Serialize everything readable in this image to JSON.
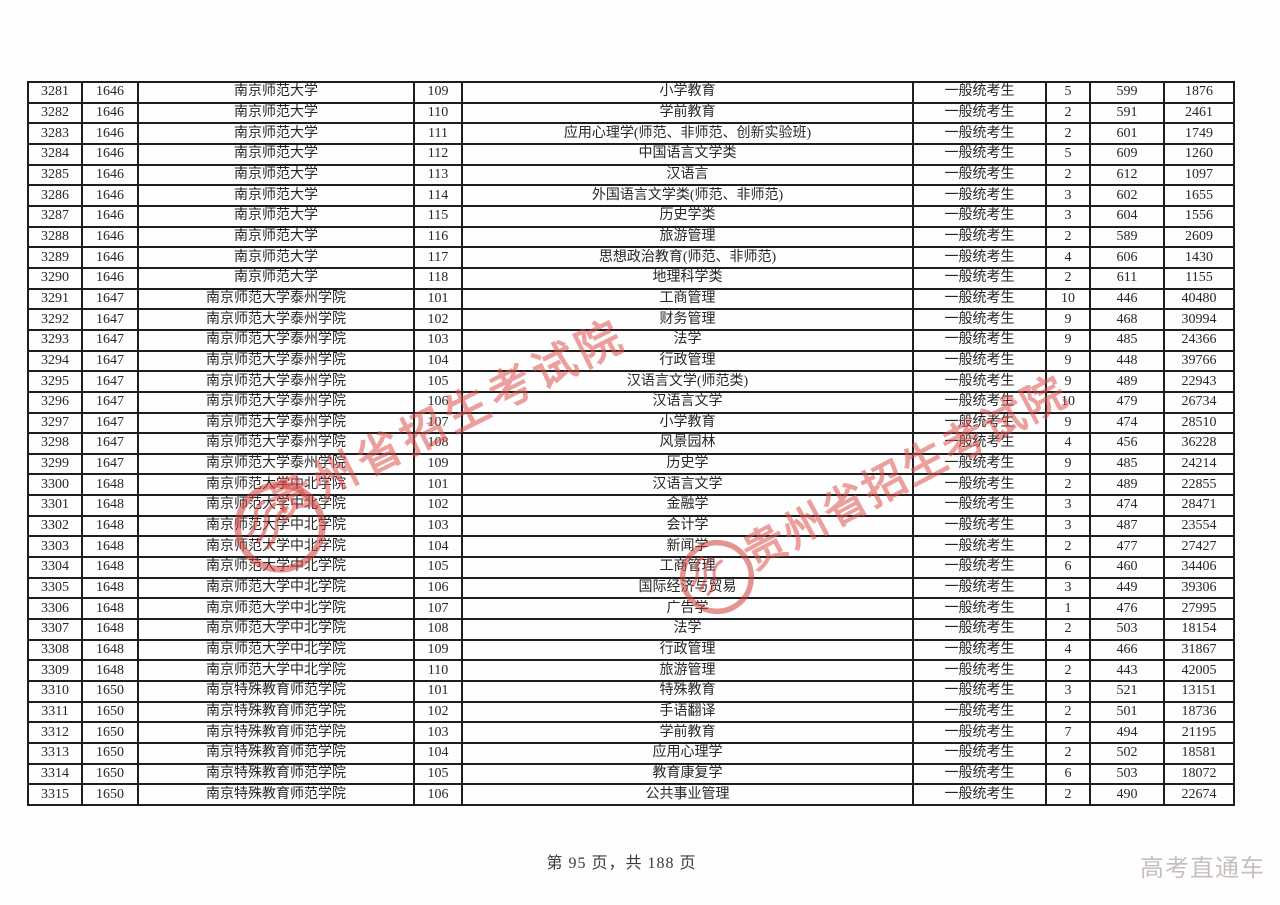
{
  "document": {
    "watermark": {
      "text": "贵州省招生考试院",
      "color": "#dd504a",
      "seal_icon": "official-seal"
    },
    "footer": {
      "page_info": "第 95 页，共 188 页",
      "brand": "高考直通车"
    }
  },
  "table": {
    "fields": [
      "seq",
      "code",
      "university",
      "major_code",
      "major",
      "type",
      "count",
      "score",
      "rank"
    ],
    "rows": [
      {
        "seq": "3281",
        "code": "1646",
        "university": "南京师范大学",
        "major_code": "109",
        "major": "小学教育",
        "type": "一般统考生",
        "count": "5",
        "score": "599",
        "rank": "1876"
      },
      {
        "seq": "3282",
        "code": "1646",
        "university": "南京师范大学",
        "major_code": "110",
        "major": "学前教育",
        "type": "一般统考生",
        "count": "2",
        "score": "591",
        "rank": "2461"
      },
      {
        "seq": "3283",
        "code": "1646",
        "university": "南京师范大学",
        "major_code": "111",
        "major": "应用心理学(师范、非师范、创新实验班)",
        "type": "一般统考生",
        "count": "2",
        "score": "601",
        "rank": "1749"
      },
      {
        "seq": "3284",
        "code": "1646",
        "university": "南京师范大学",
        "major_code": "112",
        "major": "中国语言文学类",
        "type": "一般统考生",
        "count": "5",
        "score": "609",
        "rank": "1260"
      },
      {
        "seq": "3285",
        "code": "1646",
        "university": "南京师范大学",
        "major_code": "113",
        "major": "汉语言",
        "type": "一般统考生",
        "count": "2",
        "score": "612",
        "rank": "1097"
      },
      {
        "seq": "3286",
        "code": "1646",
        "university": "南京师范大学",
        "major_code": "114",
        "major": "外国语言文学类(师范、非师范)",
        "type": "一般统考生",
        "count": "3",
        "score": "602",
        "rank": "1655"
      },
      {
        "seq": "3287",
        "code": "1646",
        "university": "南京师范大学",
        "major_code": "115",
        "major": "历史学类",
        "type": "一般统考生",
        "count": "3",
        "score": "604",
        "rank": "1556"
      },
      {
        "seq": "3288",
        "code": "1646",
        "university": "南京师范大学",
        "major_code": "116",
        "major": "旅游管理",
        "type": "一般统考生",
        "count": "2",
        "score": "589",
        "rank": "2609"
      },
      {
        "seq": "3289",
        "code": "1646",
        "university": "南京师范大学",
        "major_code": "117",
        "major": "思想政治教育(师范、非师范)",
        "type": "一般统考生",
        "count": "4",
        "score": "606",
        "rank": "1430"
      },
      {
        "seq": "3290",
        "code": "1646",
        "university": "南京师范大学",
        "major_code": "118",
        "major": "地理科学类",
        "type": "一般统考生",
        "count": "2",
        "score": "611",
        "rank": "1155"
      },
      {
        "seq": "3291",
        "code": "1647",
        "university": "南京师范大学泰州学院",
        "major_code": "101",
        "major": "工商管理",
        "type": "一般统考生",
        "count": "10",
        "score": "446",
        "rank": "40480"
      },
      {
        "seq": "3292",
        "code": "1647",
        "university": "南京师范大学泰州学院",
        "major_code": "102",
        "major": "财务管理",
        "type": "一般统考生",
        "count": "9",
        "score": "468",
        "rank": "30994"
      },
      {
        "seq": "3293",
        "code": "1647",
        "university": "南京师范大学泰州学院",
        "major_code": "103",
        "major": "法学",
        "type": "一般统考生",
        "count": "9",
        "score": "485",
        "rank": "24366"
      },
      {
        "seq": "3294",
        "code": "1647",
        "university": "南京师范大学泰州学院",
        "major_code": "104",
        "major": "行政管理",
        "type": "一般统考生",
        "count": "9",
        "score": "448",
        "rank": "39766"
      },
      {
        "seq": "3295",
        "code": "1647",
        "university": "南京师范大学泰州学院",
        "major_code": "105",
        "major": "汉语言文学(师范类)",
        "type": "一般统考生",
        "count": "9",
        "score": "489",
        "rank": "22943"
      },
      {
        "seq": "3296",
        "code": "1647",
        "university": "南京师范大学泰州学院",
        "major_code": "106",
        "major": "汉语言文学",
        "type": "一般统考生",
        "count": "10",
        "score": "479",
        "rank": "26734"
      },
      {
        "seq": "3297",
        "code": "1647",
        "university": "南京师范大学泰州学院",
        "major_code": "107",
        "major": "小学教育",
        "type": "一般统考生",
        "count": "9",
        "score": "474",
        "rank": "28510"
      },
      {
        "seq": "3298",
        "code": "1647",
        "university": "南京师范大学泰州学院",
        "major_code": "108",
        "major": "风景园林",
        "type": "一般统考生",
        "count": "4",
        "score": "456",
        "rank": "36228"
      },
      {
        "seq": "3299",
        "code": "1647",
        "university": "南京师范大学泰州学院",
        "major_code": "109",
        "major": "历史学",
        "type": "一般统考生",
        "count": "9",
        "score": "485",
        "rank": "24214"
      },
      {
        "seq": "3300",
        "code": "1648",
        "university": "南京师范大学中北学院",
        "major_code": "101",
        "major": "汉语言文学",
        "type": "一般统考生",
        "count": "2",
        "score": "489",
        "rank": "22855"
      },
      {
        "seq": "3301",
        "code": "1648",
        "university": "南京师范大学中北学院",
        "major_code": "102",
        "major": "金融学",
        "type": "一般统考生",
        "count": "3",
        "score": "474",
        "rank": "28471"
      },
      {
        "seq": "3302",
        "code": "1648",
        "university": "南京师范大学中北学院",
        "major_code": "103",
        "major": "会计学",
        "type": "一般统考生",
        "count": "3",
        "score": "487",
        "rank": "23554"
      },
      {
        "seq": "3303",
        "code": "1648",
        "university": "南京师范大学中北学院",
        "major_code": "104",
        "major": "新闻学",
        "type": "一般统考生",
        "count": "2",
        "score": "477",
        "rank": "27427"
      },
      {
        "seq": "3304",
        "code": "1648",
        "university": "南京师范大学中北学院",
        "major_code": "105",
        "major": "工商管理",
        "type": "一般统考生",
        "count": "6",
        "score": "460",
        "rank": "34406"
      },
      {
        "seq": "3305",
        "code": "1648",
        "university": "南京师范大学中北学院",
        "major_code": "106",
        "major": "国际经济与贸易",
        "type": "一般统考生",
        "count": "3",
        "score": "449",
        "rank": "39306"
      },
      {
        "seq": "3306",
        "code": "1648",
        "university": "南京师范大学中北学院",
        "major_code": "107",
        "major": "广告学",
        "type": "一般统考生",
        "count": "1",
        "score": "476",
        "rank": "27995"
      },
      {
        "seq": "3307",
        "code": "1648",
        "university": "南京师范大学中北学院",
        "major_code": "108",
        "major": "法学",
        "type": "一般统考生",
        "count": "2",
        "score": "503",
        "rank": "18154"
      },
      {
        "seq": "3308",
        "code": "1648",
        "university": "南京师范大学中北学院",
        "major_code": "109",
        "major": "行政管理",
        "type": "一般统考生",
        "count": "4",
        "score": "466",
        "rank": "31867"
      },
      {
        "seq": "3309",
        "code": "1648",
        "university": "南京师范大学中北学院",
        "major_code": "110",
        "major": "旅游管理",
        "type": "一般统考生",
        "count": "2",
        "score": "443",
        "rank": "42005"
      },
      {
        "seq": "3310",
        "code": "1650",
        "university": "南京特殊教育师范学院",
        "major_code": "101",
        "major": "特殊教育",
        "type": "一般统考生",
        "count": "3",
        "score": "521",
        "rank": "13151"
      },
      {
        "seq": "3311",
        "code": "1650",
        "university": "南京特殊教育师范学院",
        "major_code": "102",
        "major": "手语翻译",
        "type": "一般统考生",
        "count": "2",
        "score": "501",
        "rank": "18736"
      },
      {
        "seq": "3312",
        "code": "1650",
        "university": "南京特殊教育师范学院",
        "major_code": "103",
        "major": "学前教育",
        "type": "一般统考生",
        "count": "7",
        "score": "494",
        "rank": "21195"
      },
      {
        "seq": "3313",
        "code": "1650",
        "university": "南京特殊教育师范学院",
        "major_code": "104",
        "major": "应用心理学",
        "type": "一般统考生",
        "count": "2",
        "score": "502",
        "rank": "18581"
      },
      {
        "seq": "3314",
        "code": "1650",
        "university": "南京特殊教育师范学院",
        "major_code": "105",
        "major": "教育康复学",
        "type": "一般统考生",
        "count": "6",
        "score": "503",
        "rank": "18072"
      },
      {
        "seq": "3315",
        "code": "1650",
        "university": "南京特殊教育师范学院",
        "major_code": "106",
        "major": "公共事业管理",
        "type": "一般统考生",
        "count": "2",
        "score": "490",
        "rank": "22674"
      }
    ]
  }
}
